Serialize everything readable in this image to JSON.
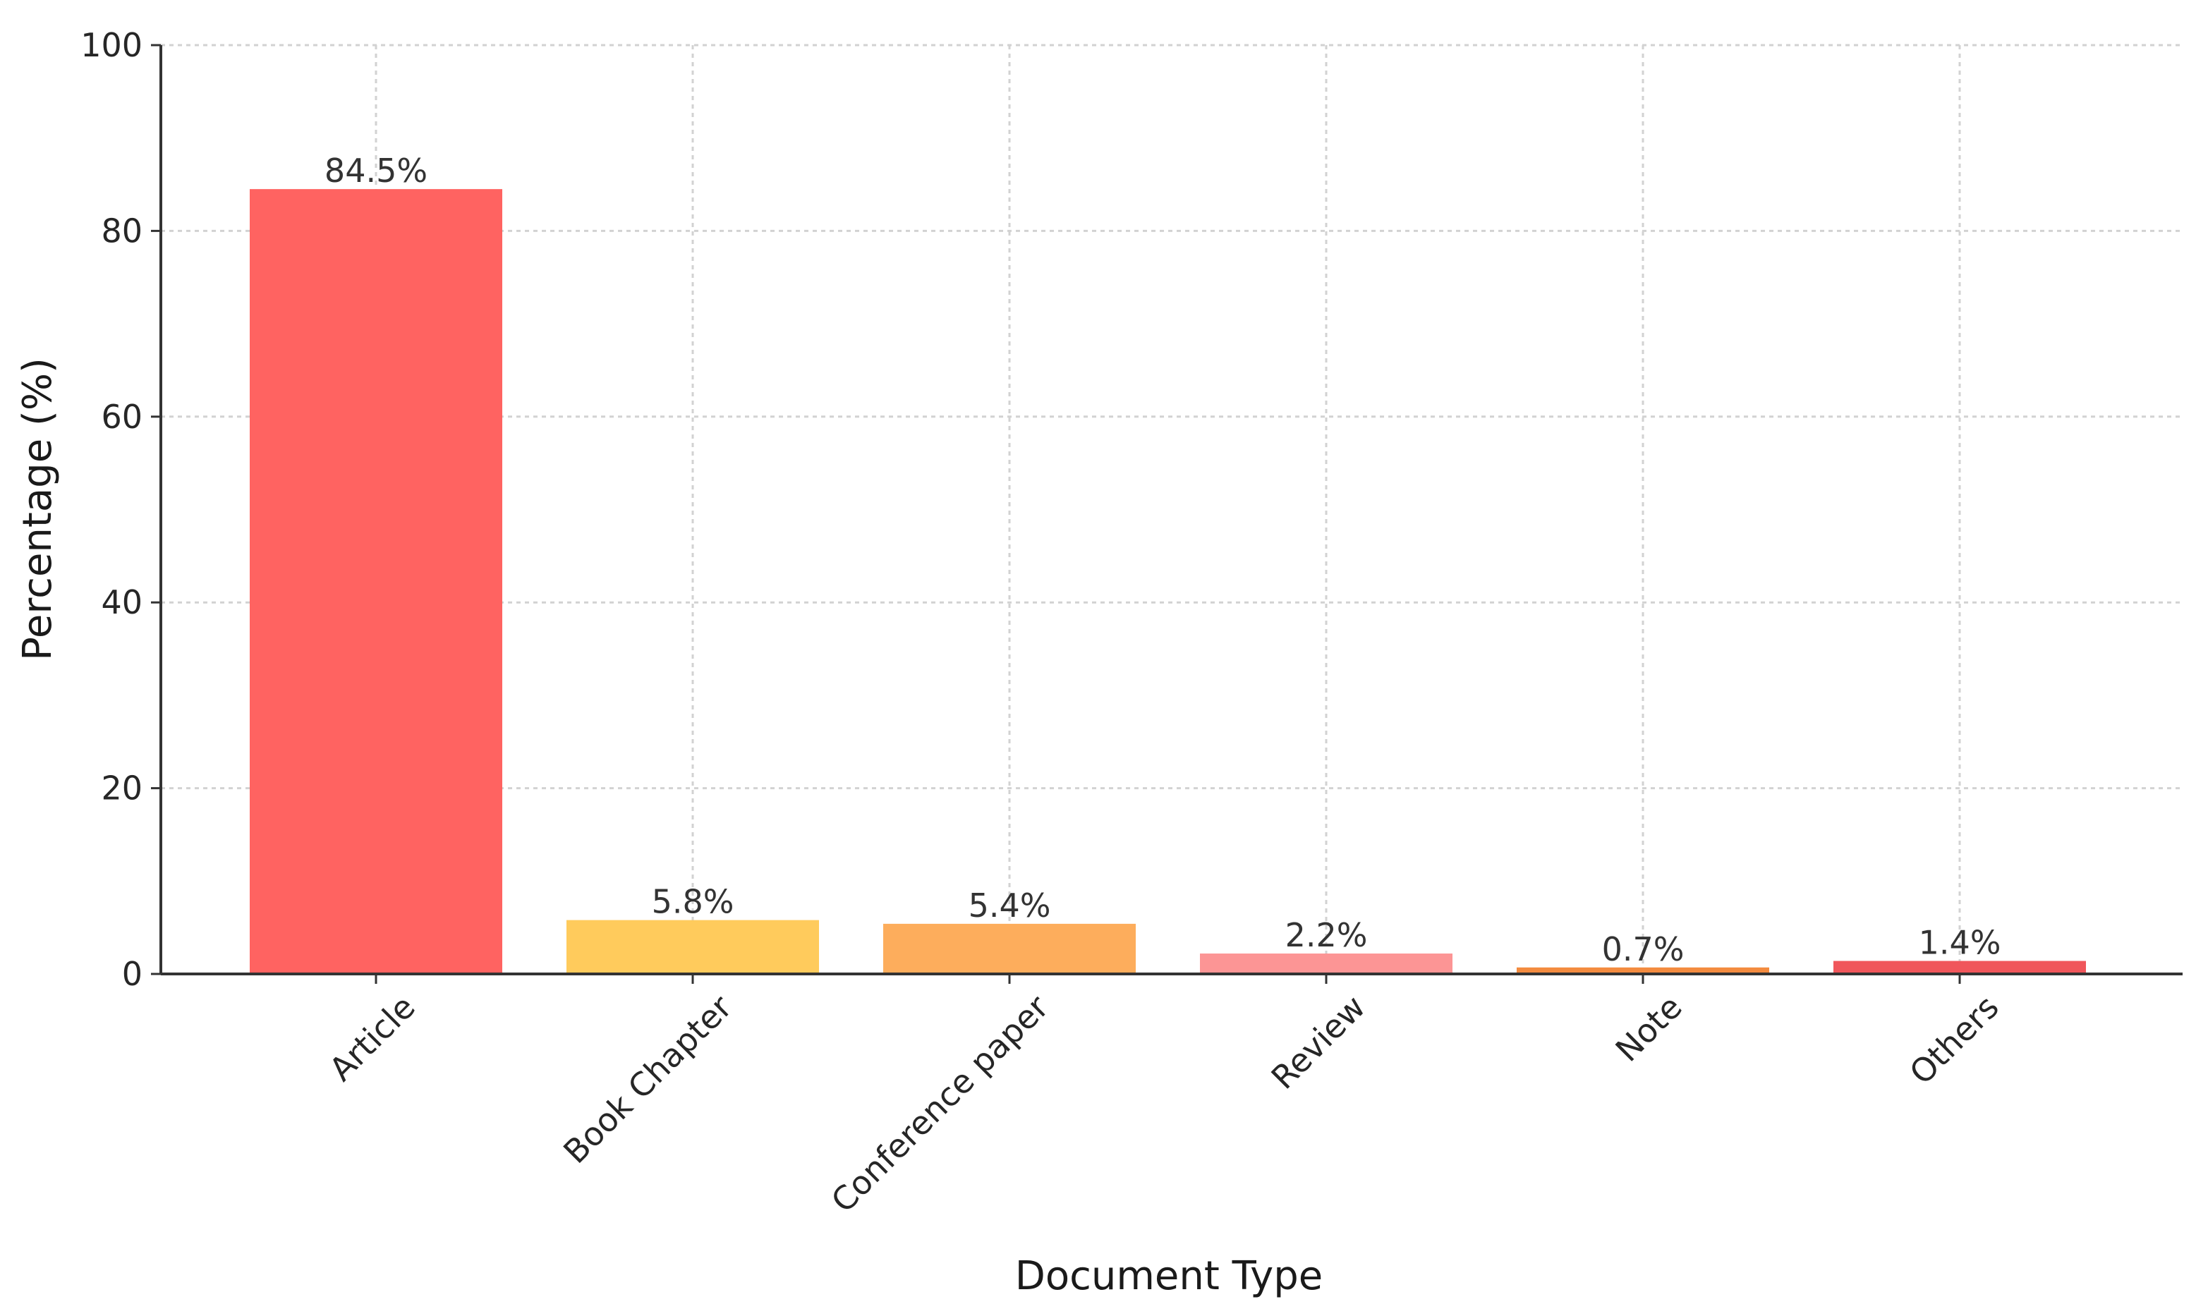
{
  "chart_data": {
    "type": "bar",
    "title": "",
    "xlabel": "Document Type",
    "ylabel": "Percentage (%)",
    "ylim": [
      0,
      100
    ],
    "yticks": [
      0,
      20,
      40,
      60,
      80,
      100
    ],
    "grid": true,
    "categories": [
      "Article",
      "Book Chapter",
      "Conference paper",
      "Review",
      "Note",
      "Others"
    ],
    "values": [
      84.5,
      5.8,
      5.4,
      2.2,
      0.7,
      1.4
    ],
    "value_labels": [
      "84.5%",
      "5.8%",
      "5.4%",
      "2.2%",
      "0.7%",
      "1.4%"
    ],
    "colors": [
      "#ff6361",
      "#ffcb5c",
      "#fdad5c",
      "#fc9595",
      "#f38b3f",
      "#f0565b"
    ],
    "gridline_color": "#d2d2d2",
    "axis_color": "#333333"
  }
}
